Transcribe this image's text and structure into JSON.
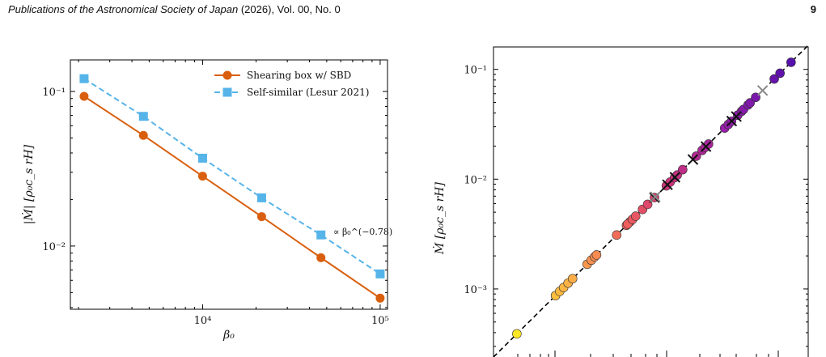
{
  "header": {
    "journal": "Publications of the Astronomical Society of Japan",
    "citation": " (2026), Vol. 00, No. 0",
    "page_number": "9"
  },
  "chart_data": [
    {
      "type": "line",
      "xscale": "log",
      "yscale": "log",
      "xlim": [
        1800,
        110000
      ],
      "ylim": [
        0.0039,
        0.16
      ],
      "xlabel": "β₀",
      "ylabel": "|Ṁ| [ρ₀c_s rH]",
      "x_ticks": [
        {
          "v": 10000,
          "label": "10⁴"
        },
        {
          "v": 100000,
          "label": "10⁵"
        }
      ],
      "y_ticks": [
        {
          "v": 0.01,
          "label": "10⁻²"
        },
        {
          "v": 0.1,
          "label": "10⁻¹"
        }
      ],
      "legend_position": "top-right",
      "series": [
        {
          "name": "Shearing box w/ SBD",
          "color": "#d95f0e",
          "marker": "circle",
          "linestyle": "solid",
          "x": [
            2150,
            4640,
            10000,
            21500,
            46400,
            100000
          ],
          "y": [
            0.093,
            0.052,
            0.0283,
            0.0155,
            0.0084,
            0.0046
          ]
        },
        {
          "name": "Self-similar (Lesur 2021)",
          "color": "#56b4e9",
          "marker": "square",
          "linestyle": "dashed",
          "x": [
            2150,
            4640,
            10000,
            21500,
            46400,
            100000
          ],
          "y": [
            0.121,
            0.069,
            0.037,
            0.0205,
            0.0118,
            0.0066
          ]
        }
      ],
      "annotation": "∝ β₀^(−0.78)"
    },
    {
      "type": "scatter",
      "yscale": "log",
      "ylim": [
        0.00024,
        0.16
      ],
      "ylabel": "Ṁ [ρ₀c_s rH]",
      "y_ticks": [
        {
          "v": 0.001,
          "label": "10⁻³"
        },
        {
          "v": 0.01,
          "label": "10⁻²"
        },
        {
          "v": 0.1,
          "label": "10⁻¹"
        }
      ],
      "reference_line": "dashed diagonal y = x",
      "points_y": [
        0.00039,
        0.00087,
        0.00095,
        0.00103,
        0.00113,
        0.00124,
        0.00168,
        0.00183,
        0.00196,
        0.00204,
        0.0031,
        0.0038,
        0.0041,
        0.0039,
        0.0043,
        0.0046,
        0.0053,
        0.0059,
        0.0068,
        0.0087,
        0.0094,
        0.0103,
        0.0109,
        0.0122,
        0.0162,
        0.0183,
        0.0195,
        0.0209,
        0.0292,
        0.0315,
        0.0337,
        0.0383,
        0.0415,
        0.0432,
        0.0474,
        0.0495,
        0.0556,
        0.0818,
        0.0922,
        0.116
      ],
      "cross_markers_y": [
        0.0068,
        0.0089,
        0.0104,
        0.0151,
        0.0198,
        0.0338,
        0.0372
      ],
      "gray_cross_markers_y": [
        0.0069,
        0.0642
      ]
    }
  ]
}
